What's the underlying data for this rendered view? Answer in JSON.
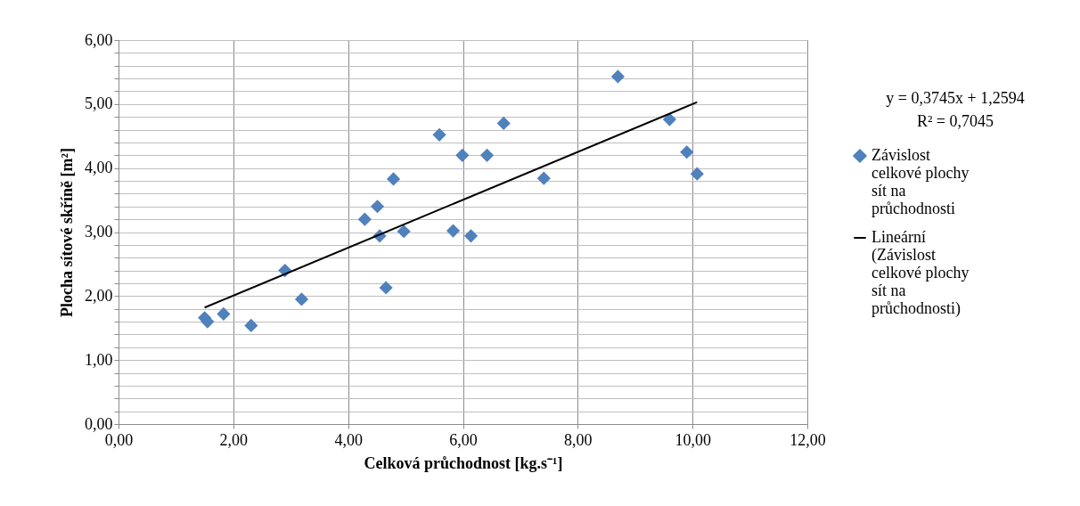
{
  "chart_data": {
    "type": "scatter",
    "xlabel": "Celková průchodnost [kg.s⁻¹]",
    "ylabel": "Plocha sítové skříně [m²]",
    "annotations": [
      "y = 0,3745x + 1,2594",
      "R² = 0,7045"
    ],
    "xlim": [
      0,
      12
    ],
    "xticks": [
      {
        "value": 0,
        "label": "0,00"
      },
      {
        "value": 2,
        "label": "2,00"
      },
      {
        "value": 4,
        "label": "4,00"
      },
      {
        "value": 6,
        "label": "6,00"
      },
      {
        "value": 8,
        "label": "8,00"
      },
      {
        "value": 10,
        "label": "10,00"
      },
      {
        "value": 12,
        "label": "12,00"
      }
    ],
    "ylim": [
      0,
      6
    ],
    "yticks": [
      {
        "value": 0,
        "label": "0,00"
      },
      {
        "value": 0.2,
        "label": null
      },
      {
        "value": 0.4,
        "label": null
      },
      {
        "value": 0.6,
        "label": null
      },
      {
        "value": 0.8,
        "label": null
      },
      {
        "value": 1,
        "label": "1,00"
      },
      {
        "value": 1.2,
        "label": null
      },
      {
        "value": 1.4,
        "label": null
      },
      {
        "value": 1.6,
        "label": null
      },
      {
        "value": 1.8,
        "label": null
      },
      {
        "value": 2,
        "label": "2,00"
      },
      {
        "value": 2.2,
        "label": null
      },
      {
        "value": 2.4,
        "label": null
      },
      {
        "value": 2.6,
        "label": null
      },
      {
        "value": 2.8,
        "label": null
      },
      {
        "value": 3,
        "label": "3,00"
      },
      {
        "value": 3.2,
        "label": null
      },
      {
        "value": 3.4,
        "label": null
      },
      {
        "value": 3.6,
        "label": null
      },
      {
        "value": 3.8,
        "label": null
      },
      {
        "value": 4,
        "label": "4,00"
      },
      {
        "value": 4.2,
        "label": null
      },
      {
        "value": 4.4,
        "label": null
      },
      {
        "value": 4.6,
        "label": null
      },
      {
        "value": 4.8,
        "label": null
      },
      {
        "value": 5,
        "label": "5,00"
      },
      {
        "value": 5.2,
        "label": null
      },
      {
        "value": 5.4,
        "label": null
      },
      {
        "value": 5.6,
        "label": null
      },
      {
        "value": 5.8,
        "label": null
      },
      {
        "value": 6,
        "label": "6,00"
      }
    ],
    "grid": true,
    "legend": "right",
    "series": [
      {
        "name": "Závislost celkové plochy sít na průchodnosti",
        "color": "#4f81bd",
        "marker": "diamond",
        "x": [
          1.5,
          1.55,
          1.83,
          2.31,
          2.9,
          3.19,
          4.29,
          4.51,
          4.55,
          4.66,
          4.79,
          4.97,
          5.59,
          5.83,
          5.99,
          6.14,
          6.42,
          6.71,
          7.41,
          8.7,
          9.6,
          9.9,
          10.08
        ],
        "values": [
          1.66,
          1.6,
          1.72,
          1.54,
          2.4,
          1.95,
          3.2,
          3.4,
          2.94,
          2.13,
          3.83,
          3.01,
          4.52,
          3.02,
          4.2,
          2.94,
          4.2,
          4.7,
          3.84,
          5.43,
          4.76,
          4.25,
          3.91
        ]
      },
      {
        "type": "line",
        "name": "Lineární (Závislost celkové plochy sít na průchodnosti)",
        "color": "#000000",
        "marker": "none",
        "line_style": "solid",
        "x": [
          1.5,
          10.08
        ],
        "values": [
          1.82,
          5.03
        ]
      }
    ]
  }
}
